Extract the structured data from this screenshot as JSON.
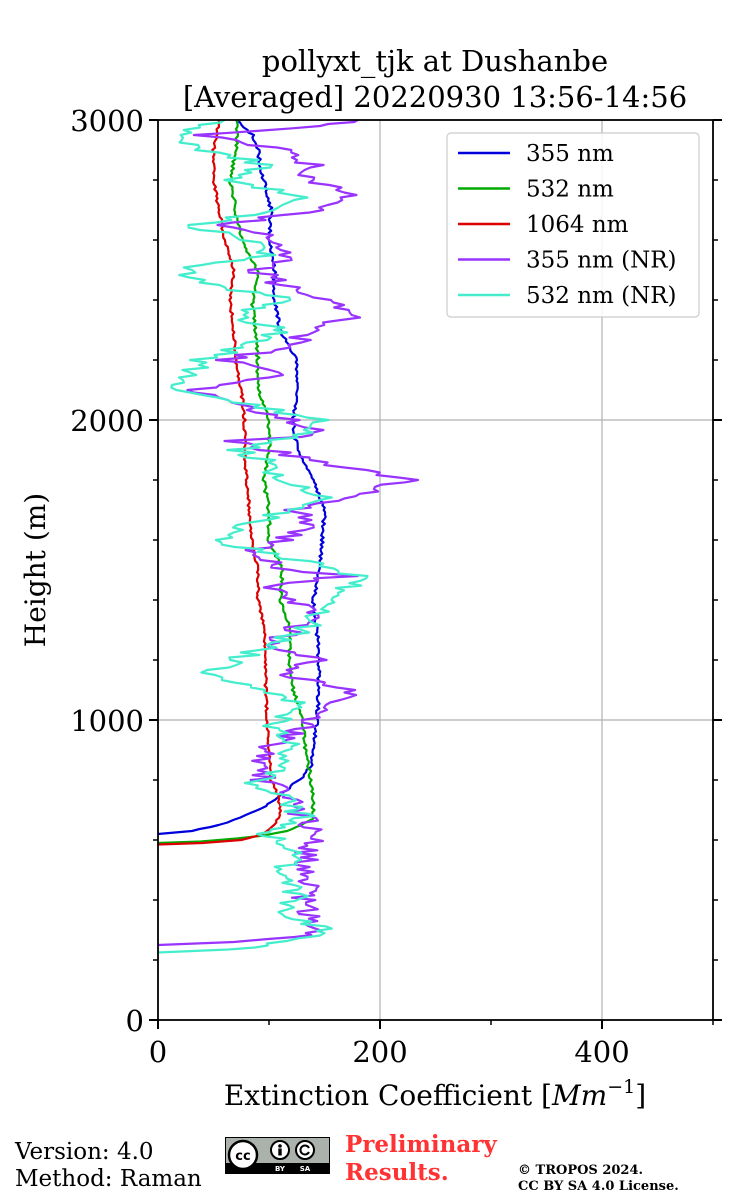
{
  "chart_data": {
    "type": "line",
    "title_line1": "pollyxt_tjk at Dushanbe",
    "title_line2": "[Averaged] 20220930 13:56-14:56",
    "xlabel": "Extinction Coefficient [",
    "xlabel_unit": "Mm",
    "xlabel_exp": "−1",
    "xlabel_end": "]",
    "ylabel": "Height (m)",
    "xlim": [
      0,
      500
    ],
    "ylim": [
      0,
      3000
    ],
    "x_ticks": [
      0,
      200,
      400
    ],
    "x_tick_labels": [
      "0",
      "200",
      "400"
    ],
    "y_ticks": [
      0,
      1000,
      2000,
      3000
    ],
    "y_tick_labels": [
      "0",
      "1000",
      "2000",
      "3000"
    ],
    "y_minor_step": 200,
    "x_minor_step": 100,
    "grid": true,
    "legend_position": "top-right",
    "series": [
      {
        "name": "355 nm",
        "color": "#0000dd",
        "jitter": 1.5,
        "points": [
          [
            0,
            620
          ],
          [
            30,
            630
          ],
          [
            55,
            650
          ],
          [
            75,
            675
          ],
          [
            90,
            700
          ],
          [
            100,
            720
          ],
          [
            110,
            750
          ],
          [
            120,
            780
          ],
          [
            130,
            810
          ],
          [
            138,
            850
          ],
          [
            140,
            900
          ],
          [
            143,
            1000
          ],
          [
            145,
            1100
          ],
          [
            145,
            1200
          ],
          [
            143,
            1300
          ],
          [
            140,
            1400
          ],
          [
            145,
            1500
          ],
          [
            148,
            1600
          ],
          [
            150,
            1700
          ],
          [
            140,
            1800
          ],
          [
            125,
            1900
          ],
          [
            122,
            2000
          ],
          [
            125,
            2100
          ],
          [
            125,
            2200
          ],
          [
            110,
            2300
          ],
          [
            105,
            2400
          ],
          [
            105,
            2500
          ],
          [
            100,
            2600
          ],
          [
            102,
            2700
          ],
          [
            95,
            2800
          ],
          [
            90,
            2900
          ],
          [
            85,
            2950
          ],
          [
            70,
            3000
          ]
        ]
      },
      {
        "name": "532 nm",
        "color": "#00aa00",
        "jitter": 1.5,
        "points": [
          [
            0,
            590
          ],
          [
            40,
            595
          ],
          [
            70,
            605
          ],
          [
            95,
            615
          ],
          [
            115,
            630
          ],
          [
            130,
            650
          ],
          [
            138,
            670
          ],
          [
            140,
            700
          ],
          [
            138,
            800
          ],
          [
            133,
            900
          ],
          [
            130,
            1000
          ],
          [
            122,
            1100
          ],
          [
            118,
            1200
          ],
          [
            120,
            1300
          ],
          [
            110,
            1400
          ],
          [
            112,
            1500
          ],
          [
            100,
            1600
          ],
          [
            100,
            1700
          ],
          [
            95,
            1800
          ],
          [
            100,
            1900
          ],
          [
            100,
            2000
          ],
          [
            90,
            2100
          ],
          [
            90,
            2200
          ],
          [
            88,
            2300
          ],
          [
            85,
            2400
          ],
          [
            90,
            2500
          ],
          [
            75,
            2600
          ],
          [
            70,
            2700
          ],
          [
            65,
            2800
          ],
          [
            70,
            2900
          ],
          [
            72,
            3000
          ]
        ]
      },
      {
        "name": "1064 nm",
        "color": "#dd0000",
        "jitter": 1.2,
        "points": [
          [
            0,
            585
          ],
          [
            40,
            590
          ],
          [
            75,
            600
          ],
          [
            95,
            620
          ],
          [
            105,
            650
          ],
          [
            110,
            690
          ],
          [
            108,
            750
          ],
          [
            102,
            800
          ],
          [
            100,
            900
          ],
          [
            98,
            1000
          ],
          [
            97,
            1100
          ],
          [
            97,
            1200
          ],
          [
            96,
            1300
          ],
          [
            90,
            1400
          ],
          [
            90,
            1500
          ],
          [
            85,
            1600
          ],
          [
            82,
            1700
          ],
          [
            80,
            1800
          ],
          [
            78,
            1900
          ],
          [
            78,
            2000
          ],
          [
            75,
            2100
          ],
          [
            70,
            2200
          ],
          [
            68,
            2300
          ],
          [
            65,
            2400
          ],
          [
            68,
            2500
          ],
          [
            60,
            2600
          ],
          [
            55,
            2700
          ],
          [
            50,
            2800
          ],
          [
            50,
            2900
          ],
          [
            55,
            3000
          ]
        ]
      },
      {
        "name": "355 nm (NR)",
        "color": "#9933ff",
        "jitter": 12,
        "points": [
          [
            0,
            250
          ],
          [
            60,
            260
          ],
          [
            110,
            270
          ],
          [
            140,
            290
          ],
          [
            135,
            330
          ],
          [
            130,
            400
          ],
          [
            135,
            470
          ],
          [
            135,
            550
          ],
          [
            140,
            620
          ],
          [
            130,
            680
          ],
          [
            115,
            750
          ],
          [
            95,
            800
          ],
          [
            90,
            880
          ],
          [
            115,
            940
          ],
          [
            140,
            1000
          ],
          [
            160,
            1050
          ],
          [
            170,
            1100
          ],
          [
            120,
            1150
          ],
          [
            140,
            1200
          ],
          [
            105,
            1250
          ],
          [
            120,
            1300
          ],
          [
            140,
            1350
          ],
          [
            120,
            1400
          ],
          [
            100,
            1450
          ],
          [
            170,
            1480
          ],
          [
            120,
            1500
          ],
          [
            80,
            1550
          ],
          [
            110,
            1600
          ],
          [
            140,
            1650
          ],
          [
            120,
            1700
          ],
          [
            230,
            1800
          ],
          [
            160,
            1850
          ],
          [
            100,
            1900
          ],
          [
            60,
            1930
          ],
          [
            150,
            1950
          ],
          [
            120,
            2000
          ],
          [
            70,
            2050
          ],
          [
            30,
            2100
          ],
          [
            110,
            2150
          ],
          [
            60,
            2200
          ],
          [
            120,
            2250
          ],
          [
            140,
            2300
          ],
          [
            180,
            2350
          ],
          [
            160,
            2400
          ],
          [
            110,
            2450
          ],
          [
            90,
            2500
          ],
          [
            120,
            2550
          ],
          [
            110,
            2600
          ],
          [
            60,
            2650
          ],
          [
            140,
            2700
          ],
          [
            180,
            2750
          ],
          [
            130,
            2800
          ],
          [
            140,
            2850
          ],
          [
            110,
            2900
          ],
          [
            40,
            2950
          ],
          [
            140,
            2980
          ],
          [
            180,
            3000
          ]
        ]
      },
      {
        "name": "532 nm (NR)",
        "color": "#44eecc",
        "jitter": 12,
        "points": [
          [
            0,
            225
          ],
          [
            70,
            235
          ],
          [
            110,
            255
          ],
          [
            150,
            290
          ],
          [
            140,
            320
          ],
          [
            115,
            360
          ],
          [
            125,
            420
          ],
          [
            110,
            480
          ],
          [
            120,
            550
          ],
          [
            100,
            620
          ],
          [
            130,
            680
          ],
          [
            110,
            740
          ],
          [
            90,
            790
          ],
          [
            110,
            840
          ],
          [
            120,
            920
          ],
          [
            100,
            980
          ],
          [
            130,
            1050
          ],
          [
            90,
            1100
          ],
          [
            40,
            1150
          ],
          [
            70,
            1200
          ],
          [
            100,
            1250
          ],
          [
            130,
            1300
          ],
          [
            160,
            1400
          ],
          [
            180,
            1480
          ],
          [
            130,
            1530
          ],
          [
            50,
            1600
          ],
          [
            80,
            1650
          ],
          [
            120,
            1700
          ],
          [
            150,
            1750
          ],
          [
            100,
            1800
          ],
          [
            110,
            1850
          ],
          [
            70,
            1900
          ],
          [
            130,
            1950
          ],
          [
            150,
            2000
          ],
          [
            80,
            2050
          ],
          [
            20,
            2100
          ],
          [
            30,
            2150
          ],
          [
            40,
            2200
          ],
          [
            80,
            2250
          ],
          [
            110,
            2300
          ],
          [
            70,
            2350
          ],
          [
            120,
            2400
          ],
          [
            50,
            2450
          ],
          [
            20,
            2500
          ],
          [
            100,
            2550
          ],
          [
            80,
            2600
          ],
          [
            30,
            2650
          ],
          [
            110,
            2700
          ],
          [
            130,
            2750
          ],
          [
            60,
            2800
          ],
          [
            100,
            2850
          ],
          [
            40,
            2900
          ],
          [
            20,
            2950
          ],
          [
            60,
            3000
          ]
        ]
      }
    ]
  },
  "footer": {
    "version": "Version: 4.0",
    "method": "Method: Raman",
    "preliminary_1": "Preliminary",
    "preliminary_2": "Results.",
    "copyright_1": "© TROPOS 2024.",
    "copyright_2": "CC BY SA 4.0 License.",
    "license_badge": {
      "cc": "cc",
      "by": "BY",
      "sa": "SA"
    }
  }
}
